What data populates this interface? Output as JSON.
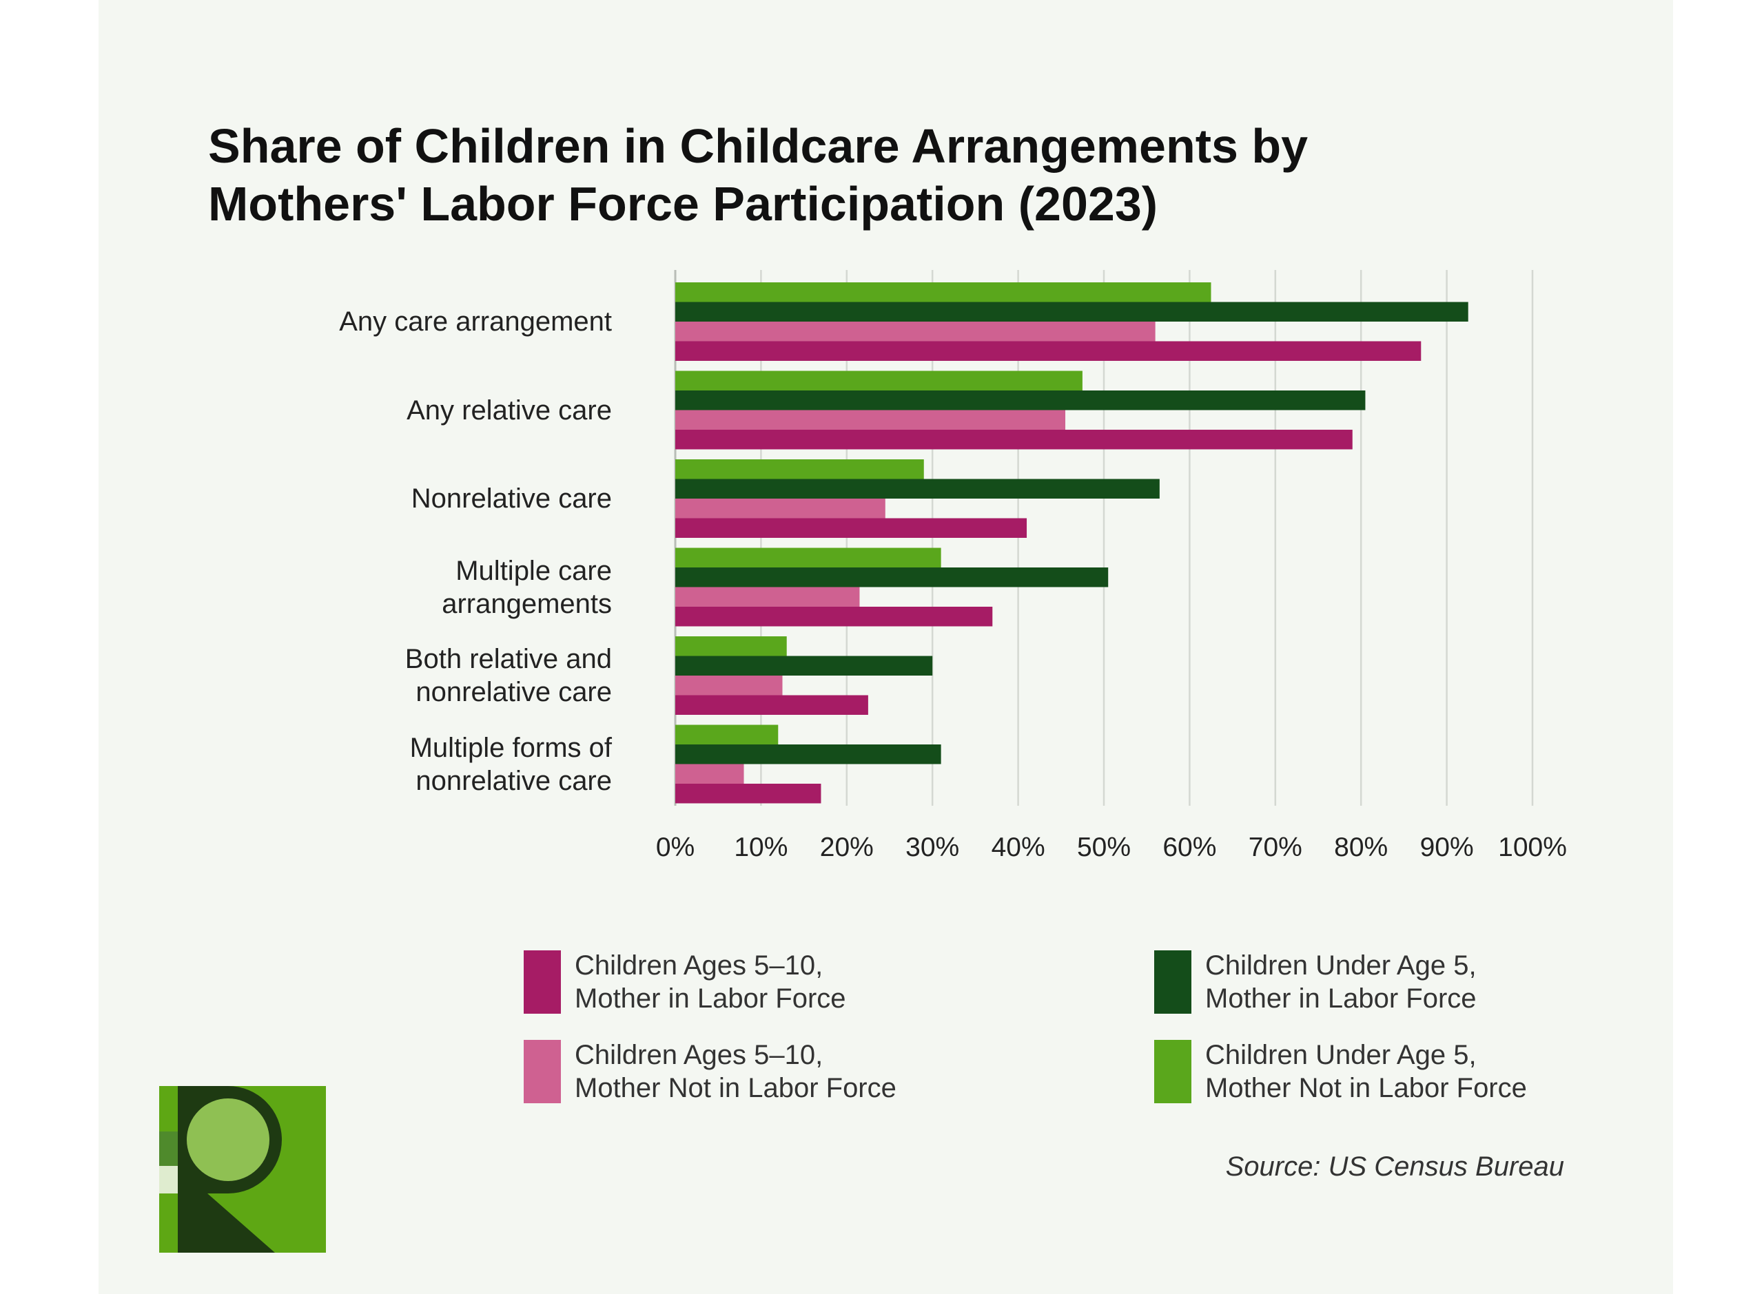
{
  "title_lines": [
    "Share of Children in Childcare Arrangements by",
    "Mothers' Labor Force Participation (2023)"
  ],
  "source": "Source: US Census Bureau",
  "colors": {
    "ages_5_10_in_lf": "#a61c65",
    "ages_5_10_not_in_lf": "#cf6191",
    "under_5_in_lf": "#144d1a",
    "under_5_not_in_lf": "#5aa71c",
    "background": "#f4f7f2",
    "grid": "#d4d8d2"
  },
  "chart_data": {
    "type": "bar",
    "orientation": "horizontal",
    "title": "Share of Children in Childcare Arrangements by Mothers' Labor Force Participation (2023)",
    "categories": [
      [
        "Any care arrangement"
      ],
      [
        "Any relative care"
      ],
      [
        "Nonrelative care"
      ],
      [
        "Multiple care",
        "arrangements"
      ],
      [
        "Both relative and",
        "nonrelative care"
      ],
      [
        "Multiple forms of",
        "nonrelative care"
      ]
    ],
    "series": [
      {
        "name": [
          "Children Under Age 5,",
          "Mother Not in Labor Force"
        ],
        "color": "#5aa71c",
        "values": [
          62.5,
          47.5,
          29,
          31,
          13,
          12
        ]
      },
      {
        "name": [
          "Children Under Age 5,",
          "Mother in Labor Force"
        ],
        "color": "#144d1a",
        "values": [
          92.5,
          80.5,
          56.5,
          50.5,
          30,
          31
        ]
      },
      {
        "name": [
          "Children Ages 5–10,",
          "Mother Not in Labor Force"
        ],
        "color": "#cf6191",
        "values": [
          56,
          45.5,
          24.5,
          21.5,
          12.5,
          8
        ]
      },
      {
        "name": [
          "Children Ages 5–10,",
          "Mother in Labor Force"
        ],
        "color": "#a61c65",
        "values": [
          87,
          79,
          41,
          37,
          22.5,
          17
        ]
      }
    ],
    "xlim": [
      0,
      100
    ],
    "xticks": [
      "0%",
      "10%",
      "20%",
      "30%",
      "40%",
      "50%",
      "60%",
      "70%",
      "80%",
      "90%",
      "100%"
    ],
    "grid": true,
    "legend_position": "bottom",
    "legend_order": [
      3,
      1,
      2,
      0
    ]
  }
}
